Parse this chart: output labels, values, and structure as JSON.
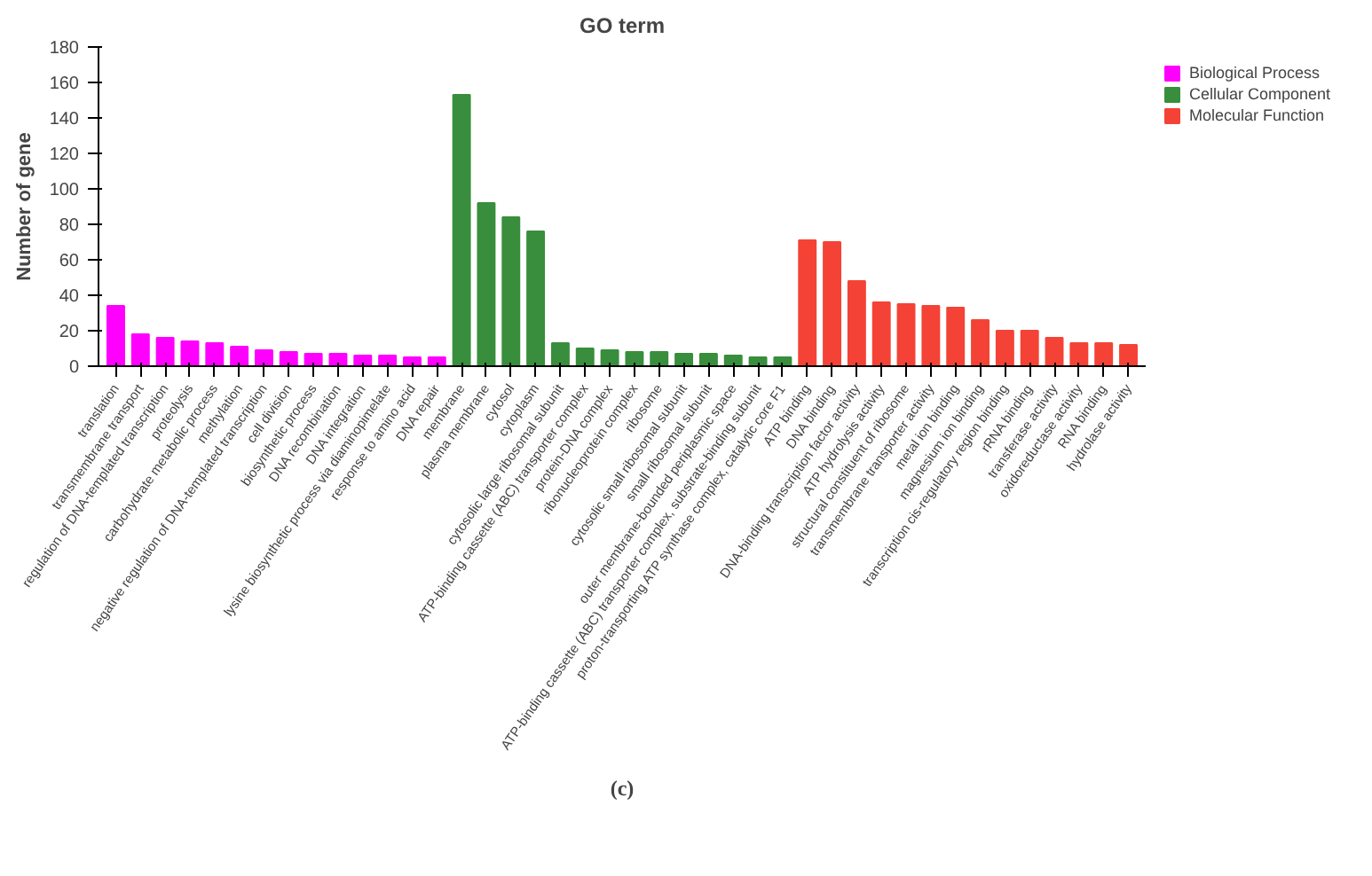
{
  "chart_data": {
    "type": "bar",
    "title": "GO term",
    "ylabel": "Number of gene",
    "categories": [
      "translation",
      "transmembrane transport",
      "regulation of DNA-templated transcription",
      "proteolysis",
      "carbohydrate metabolic process",
      "methylation",
      "negative regulation of DNA-templated transcription",
      "cell division",
      "biosynthetic process",
      "DNA recombination",
      "DNA integration",
      "lysine biosynthetic process via diaminopimelate",
      "response to amino acid",
      "DNA repair",
      "membrane",
      "plasma membrane",
      "cytosol",
      "cytoplasm",
      "cytosolic large ribosomal subunit",
      "ATP-binding cassette (ABC) transporter complex",
      "protein-DNA complex",
      "ribonucleoprotein complex",
      "ribosome",
      "cytosolic small ribosomal subunit",
      "small ribosomal subunit",
      "outer membrane-bounded periplasmic space",
      "ATP-binding cassette (ABC) transporter complex, substrate-binding subunit",
      "proton-transporting ATP synthase complex, catalytic core F1",
      "ATP binding",
      "DNA binding",
      "DNA-binding transcription factor activity",
      "ATP hydrolysis activity",
      "structural constituent of ribosome",
      "transmembrane transporter activity",
      "metal ion binding",
      "magnesium ion binding",
      "transcription cis-regulatory region binding",
      "rRNA binding",
      "transferase activity",
      "oxidoreductase activity",
      "RNA binding",
      "hydrolase activity"
    ],
    "series": [
      {
        "name": "Biological Process",
        "color": "#ff00ff",
        "values": [
          34,
          18,
          16,
          14,
          13,
          11,
          9,
          8,
          7,
          7,
          6,
          6,
          5,
          5,
          null,
          null,
          null,
          null,
          null,
          null,
          null,
          null,
          null,
          null,
          null,
          null,
          null,
          null,
          null,
          null,
          null,
          null,
          null,
          null,
          null,
          null,
          null,
          null,
          null,
          null,
          null,
          null
        ]
      },
      {
        "name": "Cellular Component",
        "color": "#388e3c",
        "values": [
          null,
          null,
          null,
          null,
          null,
          null,
          null,
          null,
          null,
          null,
          null,
          null,
          null,
          null,
          153,
          92,
          84,
          76,
          13,
          10,
          9,
          8,
          8,
          7,
          7,
          6,
          5,
          5,
          null,
          null,
          null,
          null,
          null,
          null,
          null,
          null,
          null,
          null,
          null,
          null,
          null,
          null
        ]
      },
      {
        "name": "Molecular Function",
        "color": "#f44336",
        "values": [
          null,
          null,
          null,
          null,
          null,
          null,
          null,
          null,
          null,
          null,
          null,
          null,
          null,
          null,
          null,
          null,
          null,
          null,
          null,
          null,
          null,
          null,
          null,
          null,
          null,
          null,
          null,
          null,
          71,
          70,
          48,
          36,
          35,
          34,
          33,
          26,
          20,
          20,
          16,
          13,
          13,
          12
        ]
      }
    ],
    "ylim": [
      0,
      180
    ],
    "yticks": [
      0,
      20,
      40,
      60,
      80,
      100,
      120,
      140,
      160,
      180
    ],
    "grid": false,
    "legend": "top right",
    "annotations": [
      "(c)"
    ]
  }
}
